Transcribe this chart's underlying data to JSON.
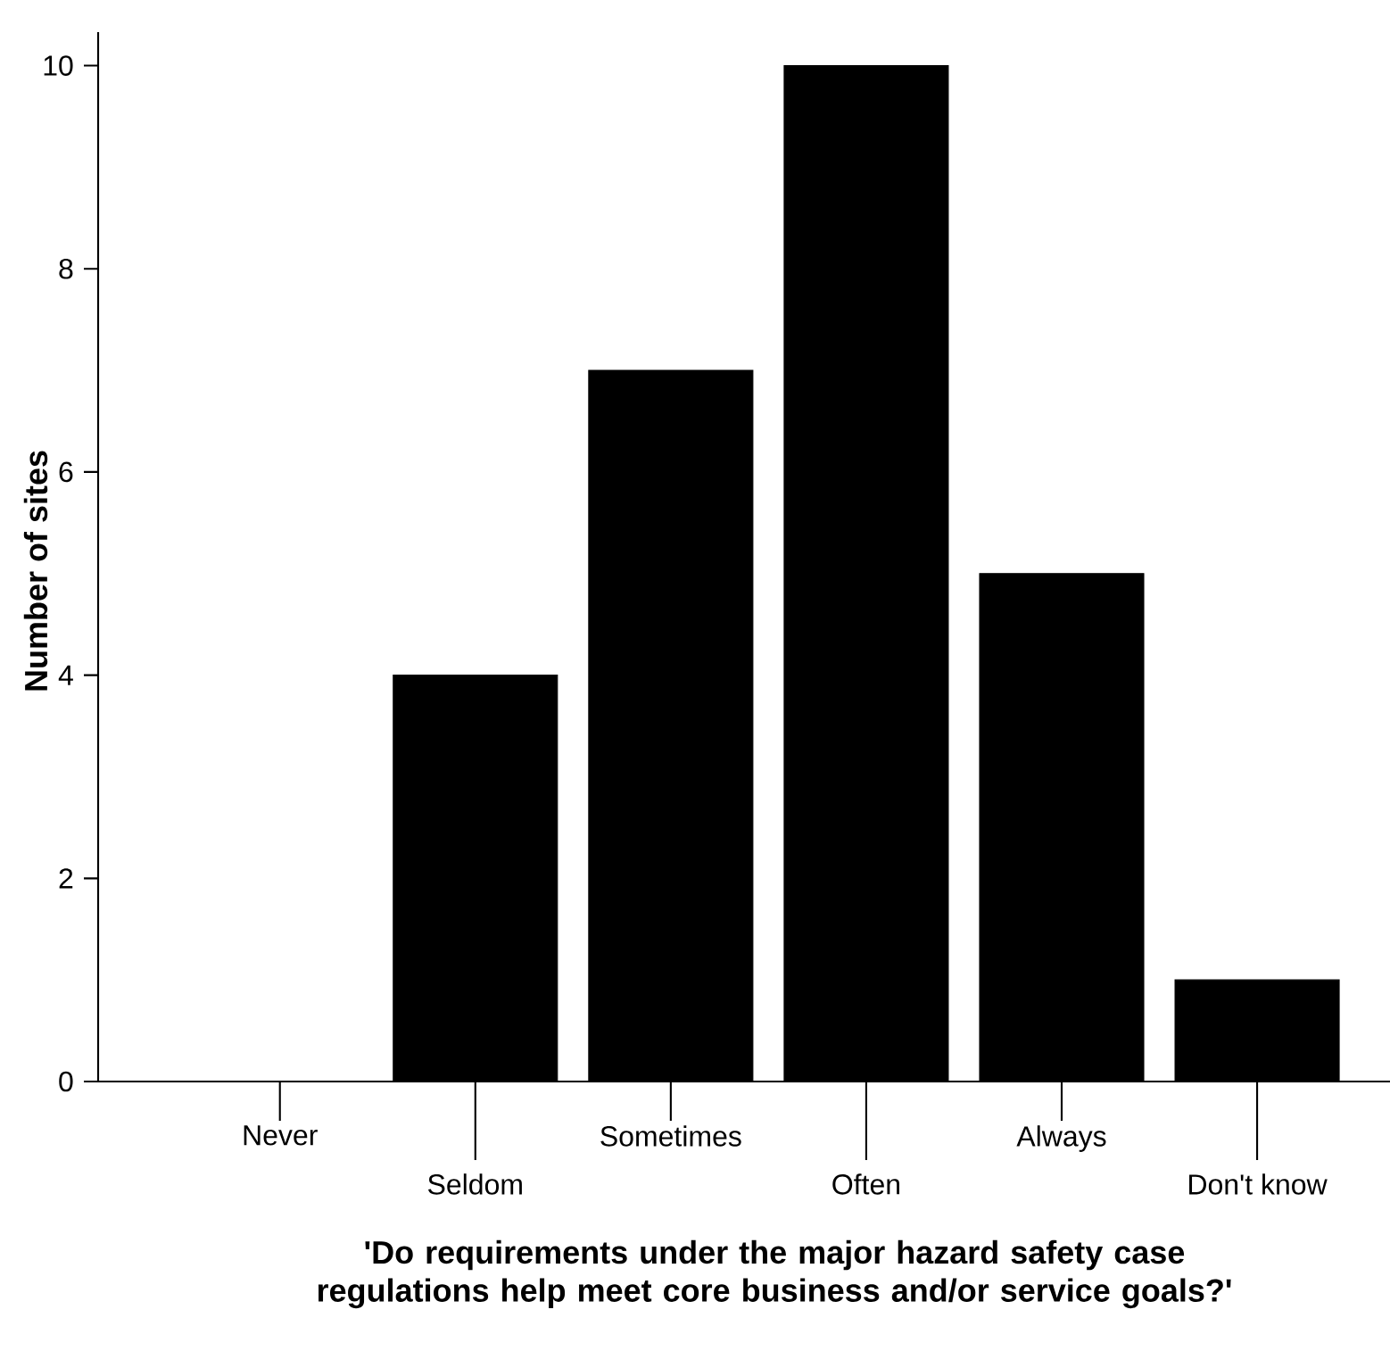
{
  "chart_data": {
    "type": "bar",
    "xlabel": "'Do requirements under the major hazard safety case regulations help meet core business and/or service goals?'",
    "ylabel": "Number of sites",
    "categories": [
      "Never",
      "Seldom",
      "Sometimes",
      "Often",
      "Always",
      "Don't know"
    ],
    "values": [
      0,
      4,
      7,
      10,
      5,
      1
    ],
    "color": "#000000",
    "ylim": [
      0,
      10.33
    ],
    "yticks": [
      0,
      2,
      4,
      6,
      8,
      10
    ]
  }
}
